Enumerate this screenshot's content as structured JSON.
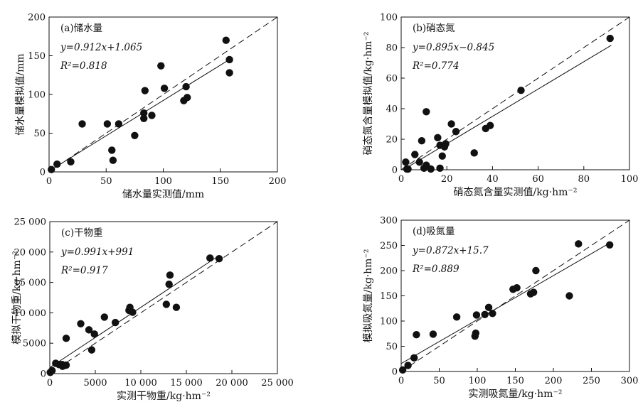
{
  "chart_data": [
    {
      "type": "scatter",
      "title": "(a)储水量",
      "xlabel": "储水量实测值/mm",
      "ylabel": "储水量模拟值/mm",
      "xlim": [
        0,
        200
      ],
      "ylim": [
        0,
        200
      ],
      "xticks": [
        0,
        50,
        100,
        150,
        200
      ],
      "yticks": [
        0,
        50,
        100,
        150,
        200
      ],
      "xtick_labels": [
        "0",
        "50",
        "100",
        "150",
        "200"
      ],
      "ytick_labels": [
        "0",
        "50",
        "100",
        "150",
        "200"
      ],
      "equation": "y=0.912x+1.065",
      "r2": "R²=0.818",
      "fit": {
        "slope": 0.912,
        "intercept": 1.065,
        "x_range": [
          0,
          158
        ]
      },
      "one_to_one": true,
      "points": [
        [
          2,
          3
        ],
        [
          7,
          10
        ],
        [
          19,
          13
        ],
        [
          29,
          62
        ],
        [
          51,
          62
        ],
        [
          55,
          28
        ],
        [
          56,
          15
        ],
        [
          61,
          62
        ],
        [
          75,
          47
        ],
        [
          83,
          69
        ],
        [
          83,
          76
        ],
        [
          84,
          105
        ],
        [
          90,
          73
        ],
        [
          98,
          137
        ],
        [
          101,
          108
        ],
        [
          118,
          92
        ],
        [
          120,
          110
        ],
        [
          121,
          96
        ],
        [
          155,
          170
        ],
        [
          158,
          145
        ],
        [
          158,
          128
        ]
      ]
    },
    {
      "type": "scatter",
      "title": "(b)硝态氮",
      "xlabel": "硝态氮含量实测值/kg·hm⁻²",
      "ylabel": "硝态氮含量模拟值/kg·hm⁻²",
      "xlim": [
        0,
        100
      ],
      "ylim": [
        0,
        100
      ],
      "xticks": [
        0,
        20,
        40,
        60,
        80,
        100
      ],
      "yticks": [
        0,
        20,
        40,
        60,
        80,
        100
      ],
      "xtick_labels": [
        "0",
        "20",
        "40",
        "60",
        "80",
        "100"
      ],
      "ytick_labels": [
        "0",
        "20",
        "40",
        "60",
        "80",
        "100"
      ],
      "equation": "y=0.895x−0.845",
      "r2": "R²=0.774",
      "fit": {
        "slope": 0.895,
        "intercept": -0.845,
        "x_range": [
          2,
          92
        ]
      },
      "one_to_one": true,
      "points": [
        [
          2,
          5
        ],
        [
          2.5,
          0.5
        ],
        [
          3,
          0.5
        ],
        [
          6,
          10
        ],
        [
          8,
          5
        ],
        [
          9,
          19
        ],
        [
          10,
          1
        ],
        [
          11,
          38
        ],
        [
          11,
          3
        ],
        [
          13,
          0.5
        ],
        [
          16,
          21
        ],
        [
          17,
          1
        ],
        [
          17,
          16
        ],
        [
          18,
          9
        ],
        [
          19,
          15
        ],
        [
          19.5,
          17
        ],
        [
          22,
          30
        ],
        [
          24,
          25
        ],
        [
          32,
          11
        ],
        [
          37,
          27
        ],
        [
          39,
          29
        ],
        [
          52.5,
          52
        ],
        [
          91.5,
          86
        ]
      ]
    },
    {
      "type": "scatter",
      "title": "(c)干物重",
      "xlabel": "实测干物重/kg·hm⁻²",
      "ylabel": "模拟干物重/kg·hm⁻²",
      "xlim": [
        0,
        25000
      ],
      "ylim": [
        0,
        25000
      ],
      "xticks": [
        0,
        5000,
        10000,
        15000,
        20000,
        25000
      ],
      "yticks": [
        0,
        5000,
        10000,
        15000,
        20000,
        25000
      ],
      "xtick_labels": [
        "0",
        "5000",
        "10 000",
        "15 000",
        "20 000",
        "25 000"
      ],
      "ytick_labels": [
        "0",
        "5000",
        "10 000",
        "15 000",
        "20 000",
        "25 000"
      ],
      "equation": "y=0.991x+991",
      "r2": "R²=0.917",
      "fit": {
        "slope": 0.991,
        "intercept": 991,
        "x_range": [
          0,
          18600
        ]
      },
      "one_to_one": true,
      "points": [
        [
          50,
          200
        ],
        [
          250,
          500
        ],
        [
          650,
          1700
        ],
        [
          1000,
          1500
        ],
        [
          1350,
          1500
        ],
        [
          1400,
          1200
        ],
        [
          1550,
          1300
        ],
        [
          1800,
          1400
        ],
        [
          1800,
          5800
        ],
        [
          3400,
          8200
        ],
        [
          4300,
          7200
        ],
        [
          4600,
          3900
        ],
        [
          4900,
          6500
        ],
        [
          6000,
          9300
        ],
        [
          7200,
          8400
        ],
        [
          8700,
          10400
        ],
        [
          8800,
          10900
        ],
        [
          9100,
          10100
        ],
        [
          12800,
          11400
        ],
        [
          13100,
          14700
        ],
        [
          13200,
          16200
        ],
        [
          13900,
          10900
        ],
        [
          17600,
          19000
        ],
        [
          18600,
          18900
        ]
      ]
    },
    {
      "type": "scatter",
      "title": "(d)吸氮量",
      "xlabel": "实测吸氮量/kg·hm⁻²",
      "ylabel": "模拟吸氮量/kg·hm⁻²",
      "xlim": [
        0,
        300
      ],
      "ylim": [
        0,
        300
      ],
      "xticks": [
        0,
        50,
        100,
        150,
        200,
        250,
        300
      ],
      "yticks": [
        0,
        50,
        100,
        150,
        200,
        250,
        300
      ],
      "xtick_labels": [
        "0",
        "50",
        "100",
        "150",
        "200",
        "250",
        "300"
      ],
      "ytick_labels": [
        "0",
        "50",
        "100",
        "150",
        "200",
        "250",
        "300"
      ],
      "equation": "y=0.872x+15.7",
      "r2": "R²=0.889",
      "fit": {
        "slope": 0.872,
        "intercept": 15.7,
        "x_range": [
          0,
          275
        ]
      },
      "one_to_one": true,
      "points": [
        [
          2,
          3
        ],
        [
          9,
          12
        ],
        [
          17,
          27
        ],
        [
          20,
          73
        ],
        [
          42,
          74
        ],
        [
          73,
          108
        ],
        [
          97,
          70
        ],
        [
          98,
          76
        ],
        [
          99,
          112
        ],
        [
          110,
          113
        ],
        [
          115,
          127
        ],
        [
          120,
          115
        ],
        [
          147,
          163
        ],
        [
          152,
          166
        ],
        [
          170,
          154
        ],
        [
          174,
          157
        ],
        [
          177,
          200
        ],
        [
          221,
          150
        ],
        [
          233,
          253
        ],
        [
          274,
          251
        ]
      ]
    }
  ]
}
